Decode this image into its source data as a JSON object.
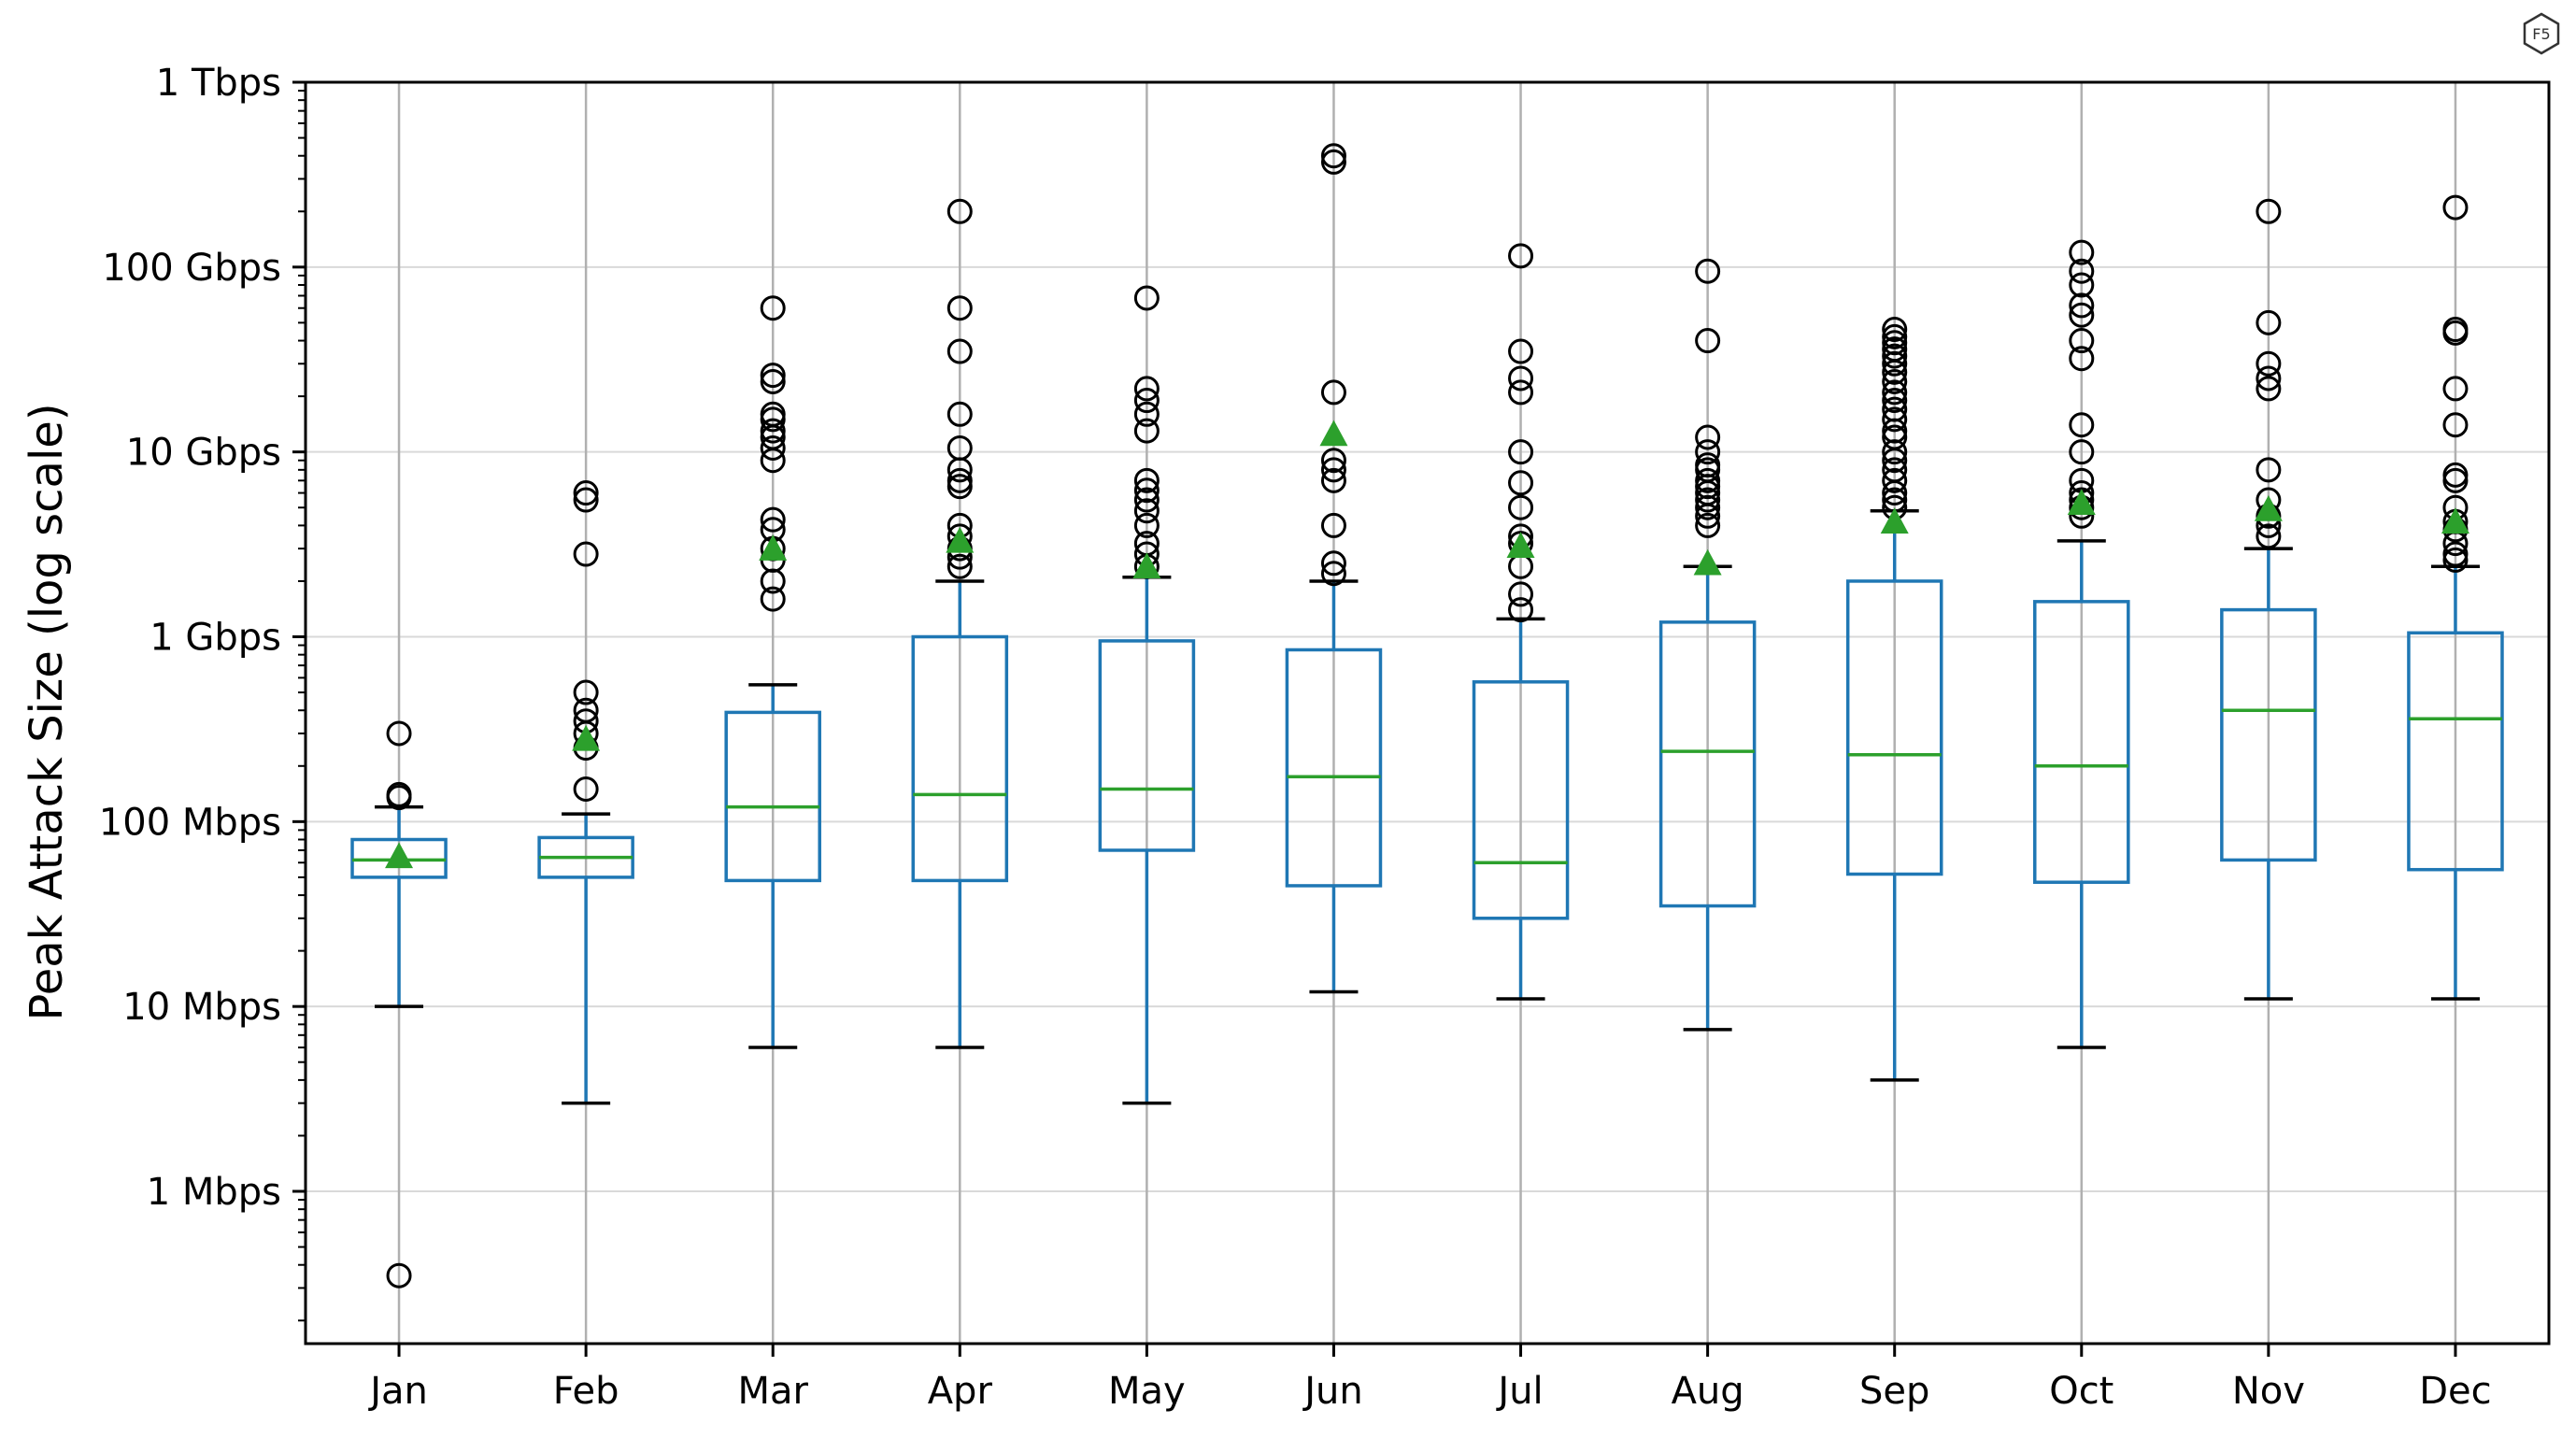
{
  "chart_data": {
    "type": "box",
    "ylabel": "Peak Attack Size (log scale)",
    "xlabel": "",
    "y_scale": "log",
    "ylim_mbps": [
      0.15,
      1000000
    ],
    "grid": true,
    "y_ticks": [
      {
        "value": 1,
        "label": "1 Mbps"
      },
      {
        "value": 10,
        "label": "10 Mbps"
      },
      {
        "value": 100,
        "label": "100 Mbps"
      },
      {
        "value": 1000,
        "label": "1 Gbps"
      },
      {
        "value": 10000,
        "label": "10 Gbps"
      },
      {
        "value": 100000,
        "label": "100 Gbps"
      },
      {
        "value": 1000000,
        "label": "1 Tbps"
      }
    ],
    "unit": "Mbps",
    "colors": {
      "box": "#1f77b4",
      "median": "#2ca02c",
      "mean": "#2ca02c",
      "whisker": "#1f77b4",
      "cap": "#000000",
      "flier": "#000000",
      "grid": "#d9d9d9"
    },
    "categories": [
      "Jan",
      "Feb",
      "Mar",
      "Apr",
      "May",
      "Jun",
      "Jul",
      "Aug",
      "Sep",
      "Oct",
      "Nov",
      "Dec"
    ],
    "boxes": [
      {
        "month": "Jan",
        "whisker_low": 10,
        "q1": 50,
        "median": 62,
        "q3": 80,
        "whisker_high": 120,
        "mean": 65,
        "fliers": [
          0.35,
          135,
          140,
          300
        ]
      },
      {
        "month": "Feb",
        "whisker_low": 3,
        "q1": 50,
        "median": 64,
        "q3": 82,
        "whisker_high": 110,
        "mean": 280,
        "fliers": [
          150,
          250,
          300,
          350,
          400,
          500,
          2800,
          5500,
          6000
        ]
      },
      {
        "month": "Mar",
        "whisker_low": 6,
        "q1": 48,
        "median": 120,
        "q3": 390,
        "whisker_high": 550,
        "mean": 3000,
        "fliers": [
          1600,
          2000,
          2600,
          3000,
          3800,
          4300,
          9000,
          10500,
          12000,
          13000,
          15000,
          16000,
          24000,
          26000,
          60000
        ]
      },
      {
        "month": "Apr",
        "whisker_low": 6,
        "q1": 48,
        "median": 140,
        "q3": 1000,
        "whisker_high": 2000,
        "mean": 3300,
        "fliers": [
          2400,
          2700,
          3000,
          3500,
          4000,
          6500,
          7000,
          8000,
          10500,
          16000,
          35000,
          60000,
          200000
        ]
      },
      {
        "month": "May",
        "whisker_low": 3,
        "q1": 70,
        "median": 150,
        "q3": 950,
        "whisker_high": 2100,
        "mean": 2400,
        "fliers": [
          2400,
          2800,
          3200,
          4000,
          4800,
          5500,
          6200,
          7000,
          13000,
          16000,
          19000,
          22000,
          68000
        ]
      },
      {
        "month": "Jun",
        "whisker_low": 12,
        "q1": 45,
        "median": 175,
        "q3": 850,
        "whisker_high": 2000,
        "mean": 12500,
        "fliers": [
          2200,
          2500,
          4000,
          7000,
          8000,
          9000,
          21000,
          370000,
          400000
        ]
      },
      {
        "month": "Jul",
        "whisker_low": 11,
        "q1": 30,
        "median": 60,
        "q3": 570,
        "whisker_high": 1250,
        "mean": 3100,
        "fliers": [
          1400,
          1700,
          2400,
          3200,
          3500,
          5000,
          6800,
          10000,
          21000,
          25000,
          35000,
          115000
        ]
      },
      {
        "month": "Aug",
        "whisker_low": 7.5,
        "q1": 35,
        "median": 240,
        "q3": 1200,
        "whisker_high": 2400,
        "mean": 2500,
        "fliers": [
          4000,
          4500,
          5000,
          5500,
          6000,
          6500,
          7000,
          8000,
          8500,
          10000,
          12000,
          40000,
          95000
        ]
      },
      {
        "month": "Sep",
        "whisker_low": 4,
        "q1": 52,
        "median": 230,
        "q3": 2000,
        "whisker_high": 4800,
        "mean": 4200,
        "fliers": [
          5000,
          5500,
          6000,
          7000,
          8000,
          9000,
          10000,
          12000,
          13000,
          15000,
          17000,
          19000,
          21000,
          24000,
          27000,
          30000,
          33000,
          36000,
          39000,
          42000,
          46000
        ]
      },
      {
        "month": "Oct",
        "whisker_low": 6,
        "q1": 47,
        "median": 200,
        "q3": 1550,
        "whisker_high": 3300,
        "mean": 5300,
        "fliers": [
          4500,
          5000,
          5500,
          6000,
          7000,
          10000,
          14000,
          32000,
          40000,
          55000,
          62000,
          80000,
          95000,
          120000
        ]
      },
      {
        "month": "Nov",
        "whisker_low": 11,
        "q1": 62,
        "median": 400,
        "q3": 1400,
        "whisker_high": 3000,
        "mean": 4900,
        "fliers": [
          3500,
          4000,
          4500,
          5500,
          8000,
          22000,
          25000,
          30000,
          50000,
          200000
        ]
      },
      {
        "month": "Dec",
        "whisker_low": 11,
        "q1": 55,
        "median": 360,
        "q3": 1050,
        "whisker_high": 2400,
        "mean": 4200,
        "fliers": [
          2600,
          2800,
          3200,
          3800,
          4200,
          5000,
          7000,
          7500,
          14000,
          22000,
          44000,
          46000,
          210000
        ]
      }
    ]
  },
  "logo": {
    "icon": "f5-hexagon-icon",
    "text": "F5"
  }
}
